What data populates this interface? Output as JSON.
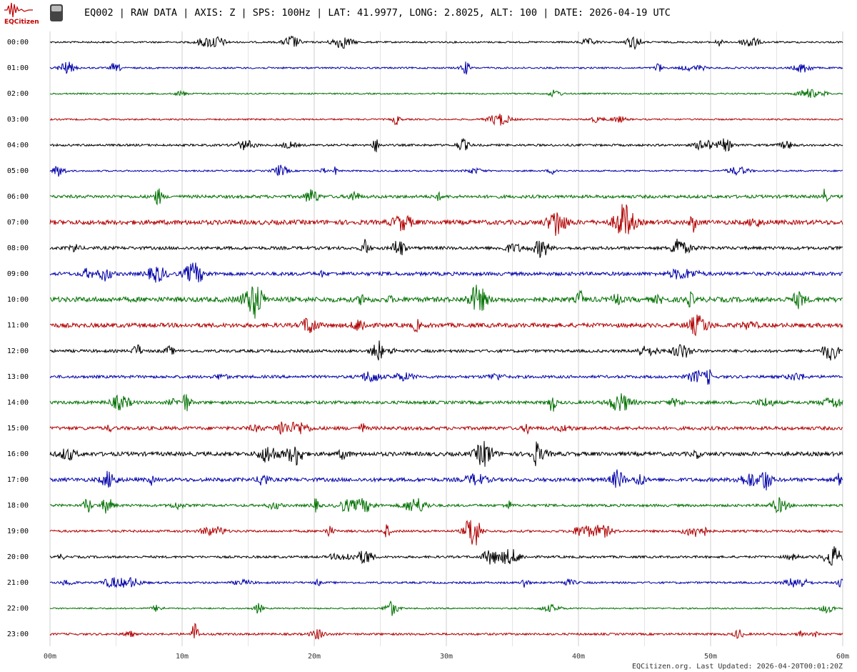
{
  "header": {
    "title": "EQ002 | RAW DATA | AXIS: Z | SPS: 100Hz | LAT: 41.9977, LONG: 2.8025, ALT: 100 | DATE: 2026-04-19 UTC",
    "logo_text": "EQCitizen"
  },
  "rows": [
    "00:00",
    "01:00",
    "02:00",
    "03:00",
    "04:00",
    "05:00",
    "06:00",
    "07:00",
    "08:00",
    "09:00",
    "10:00",
    "11:00",
    "12:00",
    "13:00",
    "14:00",
    "15:00",
    "16:00",
    "17:00",
    "18:00",
    "19:00",
    "20:00",
    "21:00",
    "22:00",
    "23:00"
  ],
  "trace_colors": [
    "#000000",
    "#0000a8",
    "#007000",
    "#b00000"
  ],
  "x_axis": {
    "range": [
      0,
      60
    ],
    "minor_step": 5,
    "ticks": [
      {
        "value": 0,
        "label": "00m"
      },
      {
        "value": 10,
        "label": "10m"
      },
      {
        "value": 20,
        "label": "20m"
      },
      {
        "value": 30,
        "label": "30m"
      },
      {
        "value": 40,
        "label": "40m"
      },
      {
        "value": 50,
        "label": "50m"
      },
      {
        "value": 60,
        "label": "60m"
      }
    ]
  },
  "footer": "EQCitizen.org. Last Updated: 2026-04-20T00:01:20Z"
}
